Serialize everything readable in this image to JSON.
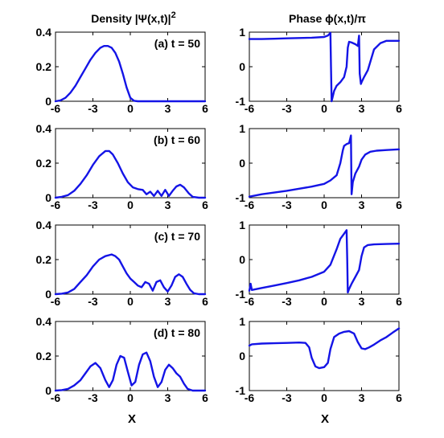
{
  "figure": {
    "column_titles": {
      "left": "Density |Ψ(x,t)|",
      "left_sup": "2",
      "right": "Phase ϕ(x,t)/π"
    },
    "xlabel": "X",
    "line_color": "#1414e6"
  },
  "chart_data": [
    {
      "type": "line",
      "panel": "density",
      "label": "(a) t = 50",
      "xlim": [
        -6,
        6
      ],
      "ylim": [
        0,
        0.4
      ],
      "xticks": [
        "-6",
        "-3",
        "0",
        "3",
        "6"
      ],
      "yticks": [
        "0",
        "0.2",
        "0.4"
      ],
      "series": [
        {
          "x": [
            -6,
            -5.6,
            -5.2,
            -4.8,
            -4.4,
            -4.0,
            -3.6,
            -3.2,
            -2.8,
            -2.4,
            -2.1,
            -1.8,
            -1.5,
            -1.2,
            -0.9,
            -0.6,
            -0.3,
            0.0,
            0.3,
            0.6,
            1.0,
            2.0,
            3.0,
            4.0,
            5.0,
            6.0
          ],
          "y": [
            0.0,
            0.005,
            0.02,
            0.05,
            0.09,
            0.14,
            0.19,
            0.24,
            0.28,
            0.31,
            0.32,
            0.32,
            0.31,
            0.28,
            0.23,
            0.16,
            0.08,
            0.02,
            0.003,
            0.0,
            0.0,
            0.0,
            0.0,
            0.0,
            0.0,
            0.0
          ]
        }
      ]
    },
    {
      "type": "line",
      "panel": "phase",
      "xlim": [
        -6,
        6
      ],
      "ylim": [
        -1,
        1
      ],
      "xticks": [
        "-6",
        "-3",
        "0",
        "3",
        "6"
      ],
      "yticks": [
        "-1",
        "0",
        "1"
      ],
      "series": [
        {
          "x": [
            -6,
            -5,
            -4,
            -3,
            -2,
            -1,
            0,
            0.3,
            0.5,
            0.55,
            0.6,
            0.8,
            1.0,
            1.3,
            1.6,
            1.8,
            1.9,
            2.0,
            2.2,
            2.5,
            2.7,
            2.8,
            2.85,
            2.95,
            3.0,
            3.2,
            3.5,
            4.0,
            4.5,
            5.0,
            6.0
          ],
          "y": [
            0.8,
            0.8,
            0.81,
            0.82,
            0.83,
            0.84,
            0.86,
            0.9,
            0.98,
            0.0,
            -1.0,
            -0.7,
            -0.55,
            -0.45,
            -0.3,
            0.0,
            0.55,
            0.72,
            0.7,
            0.65,
            0.6,
            0.9,
            -0.2,
            -0.5,
            -0.45,
            -0.3,
            -0.1,
            0.5,
            0.68,
            0.75,
            0.75
          ]
        }
      ]
    },
    {
      "type": "line",
      "panel": "density",
      "label": "(b) t = 60",
      "xlim": [
        -6,
        6
      ],
      "ylim": [
        0,
        0.4
      ],
      "xticks": [
        "-6",
        "-3",
        "0",
        "3",
        "6"
      ],
      "yticks": [
        "0",
        "0.2",
        "0.4"
      ],
      "series": [
        {
          "x": [
            -6,
            -5.5,
            -5.0,
            -4.5,
            -4.0,
            -3.5,
            -3.0,
            -2.5,
            -2.0,
            -1.7,
            -1.4,
            -1.0,
            -0.6,
            -0.2,
            0.2,
            0.6,
            1.0,
            1.3,
            1.6,
            1.9,
            2.2,
            2.5,
            2.8,
            3.1,
            3.4,
            3.7,
            4.0,
            4.3,
            4.7,
            5.0,
            5.5,
            6.0
          ],
          "y": [
            0.0,
            0.005,
            0.015,
            0.04,
            0.08,
            0.13,
            0.19,
            0.24,
            0.27,
            0.27,
            0.25,
            0.2,
            0.14,
            0.09,
            0.06,
            0.05,
            0.045,
            0.02,
            0.035,
            0.01,
            0.04,
            0.01,
            0.045,
            0.01,
            0.04,
            0.065,
            0.075,
            0.06,
            0.025,
            0.005,
            0.0,
            0.0
          ]
        }
      ]
    },
    {
      "type": "line",
      "panel": "phase",
      "xlim": [
        -6,
        6
      ],
      "ylim": [
        -1,
        1
      ],
      "xticks": [
        "-6",
        "-3",
        "0",
        "3",
        "6"
      ],
      "yticks": [
        "-1",
        "0",
        "1"
      ],
      "series": [
        {
          "x": [
            -6,
            -5,
            -4,
            -3,
            -2,
            -1,
            0,
            0.5,
            1.0,
            1.3,
            1.5,
            1.6,
            1.8,
            2.0,
            2.1,
            2.15,
            2.2,
            2.3,
            2.5,
            2.8,
            3.0,
            3.3,
            3.7,
            4.2,
            5.0,
            6.0
          ],
          "y": [
            -0.97,
            -0.9,
            -0.85,
            -0.8,
            -0.74,
            -0.68,
            -0.6,
            -0.5,
            -0.35,
            0.0,
            0.38,
            0.5,
            0.55,
            0.58,
            0.72,
            0.8,
            -0.9,
            -0.55,
            -0.3,
            -0.1,
            0.1,
            0.25,
            0.33,
            0.36,
            0.38,
            0.4
          ]
        }
      ]
    },
    {
      "type": "line",
      "panel": "density",
      "label": "(c) t = 70",
      "xlim": [
        -6,
        6
      ],
      "ylim": [
        0,
        0.4
      ],
      "xticks": [
        "-6",
        "-3",
        "0",
        "3",
        "6"
      ],
      "yticks": [
        "0",
        "0.2",
        "0.4"
      ],
      "series": [
        {
          "x": [
            -6,
            -5.5,
            -5.0,
            -4.5,
            -4.0,
            -3.5,
            -3.0,
            -2.5,
            -2.0,
            -1.5,
            -1.2,
            -0.9,
            -0.6,
            -0.3,
            0.0,
            0.3,
            0.6,
            0.9,
            1.2,
            1.5,
            1.8,
            2.1,
            2.4,
            2.7,
            3.0,
            3.3,
            3.6,
            3.9,
            4.2,
            4.5,
            4.8,
            5.1,
            5.5,
            6.0
          ],
          "y": [
            0.0,
            0.003,
            0.01,
            0.03,
            0.07,
            0.11,
            0.16,
            0.2,
            0.22,
            0.23,
            0.22,
            0.2,
            0.16,
            0.12,
            0.09,
            0.07,
            0.05,
            0.04,
            0.07,
            0.06,
            0.02,
            0.07,
            0.08,
            0.04,
            0.015,
            0.05,
            0.1,
            0.115,
            0.1,
            0.06,
            0.025,
            0.005,
            0.0,
            0.0
          ]
        }
      ]
    },
    {
      "type": "line",
      "panel": "phase",
      "xlim": [
        -6,
        6
      ],
      "ylim": [
        -1,
        1
      ],
      "xticks": [
        "-6",
        "-3",
        "0",
        "3",
        "6"
      ],
      "yticks": [
        "-1",
        "0",
        "1"
      ],
      "series": [
        {
          "x": [
            -6,
            -5.9,
            -5.8,
            -5,
            -4,
            -3,
            -2,
            -1,
            0,
            0.5,
            1.0,
            1.3,
            1.6,
            1.8,
            1.85,
            1.9,
            2.0,
            2.2,
            2.5,
            2.8,
            3.0,
            3.2,
            3.5,
            4.0,
            5.0,
            6.0
          ],
          "y": [
            -0.9,
            -0.7,
            -0.88,
            -0.82,
            -0.75,
            -0.68,
            -0.6,
            -0.5,
            -0.35,
            -0.15,
            0.3,
            0.6,
            0.75,
            0.85,
            0.0,
            -0.95,
            -0.85,
            -0.7,
            -0.5,
            -0.3,
            0.1,
            0.35,
            0.42,
            0.44,
            0.45,
            0.46
          ]
        }
      ]
    },
    {
      "type": "line",
      "panel": "density",
      "label": "(d) t = 80",
      "xlim": [
        -6,
        6
      ],
      "ylim": [
        0,
        0.4
      ],
      "xticks": [
        "-6",
        "-3",
        "0",
        "3",
        "6"
      ],
      "yticks": [
        "0",
        "0.2",
        "0.4"
      ],
      "series": [
        {
          "x": [
            -6,
            -5.5,
            -5.0,
            -4.5,
            -4.0,
            -3.6,
            -3.2,
            -2.8,
            -2.4,
            -2.0,
            -1.7,
            -1.4,
            -1.1,
            -0.8,
            -0.5,
            -0.2,
            0.1,
            0.4,
            0.7,
            1.0,
            1.3,
            1.6,
            1.9,
            2.2,
            2.5,
            2.8,
            3.1,
            3.4,
            3.7,
            4.0,
            4.3,
            4.6,
            5.0,
            5.5,
            6.0
          ],
          "y": [
            0.0,
            0.003,
            0.01,
            0.03,
            0.06,
            0.1,
            0.14,
            0.16,
            0.13,
            0.06,
            0.02,
            0.06,
            0.15,
            0.2,
            0.19,
            0.11,
            0.03,
            0.05,
            0.15,
            0.21,
            0.22,
            0.17,
            0.08,
            0.02,
            0.05,
            0.12,
            0.15,
            0.13,
            0.1,
            0.08,
            0.04,
            0.01,
            0.0,
            0.0,
            0.0
          ]
        }
      ]
    },
    {
      "type": "line",
      "panel": "phase",
      "xlim": [
        -6,
        6
      ],
      "ylim": [
        -1,
        1
      ],
      "xticks": [
        "-6",
        "-3",
        "0",
        "3",
        "6"
      ],
      "yticks": [
        "-1",
        "0",
        "1"
      ],
      "series": [
        {
          "x": [
            -6,
            -5.8,
            -5,
            -4,
            -3,
            -2,
            -1.5,
            -1.2,
            -1.0,
            -0.7,
            -0.4,
            0.0,
            0.3,
            0.5,
            0.8,
            1.2,
            1.6,
            2.0,
            2.4,
            2.7,
            3.0,
            3.3,
            3.6,
            4.0,
            4.5,
            5.0,
            5.5,
            6.0
          ],
          "y": [
            0.3,
            0.34,
            0.36,
            0.37,
            0.38,
            0.39,
            0.38,
            0.25,
            -0.05,
            -0.3,
            -0.35,
            -0.32,
            -0.2,
            0.2,
            0.55,
            0.65,
            0.7,
            0.72,
            0.65,
            0.4,
            0.22,
            0.2,
            0.25,
            0.33,
            0.45,
            0.55,
            0.68,
            0.8
          ]
        }
      ]
    }
  ]
}
